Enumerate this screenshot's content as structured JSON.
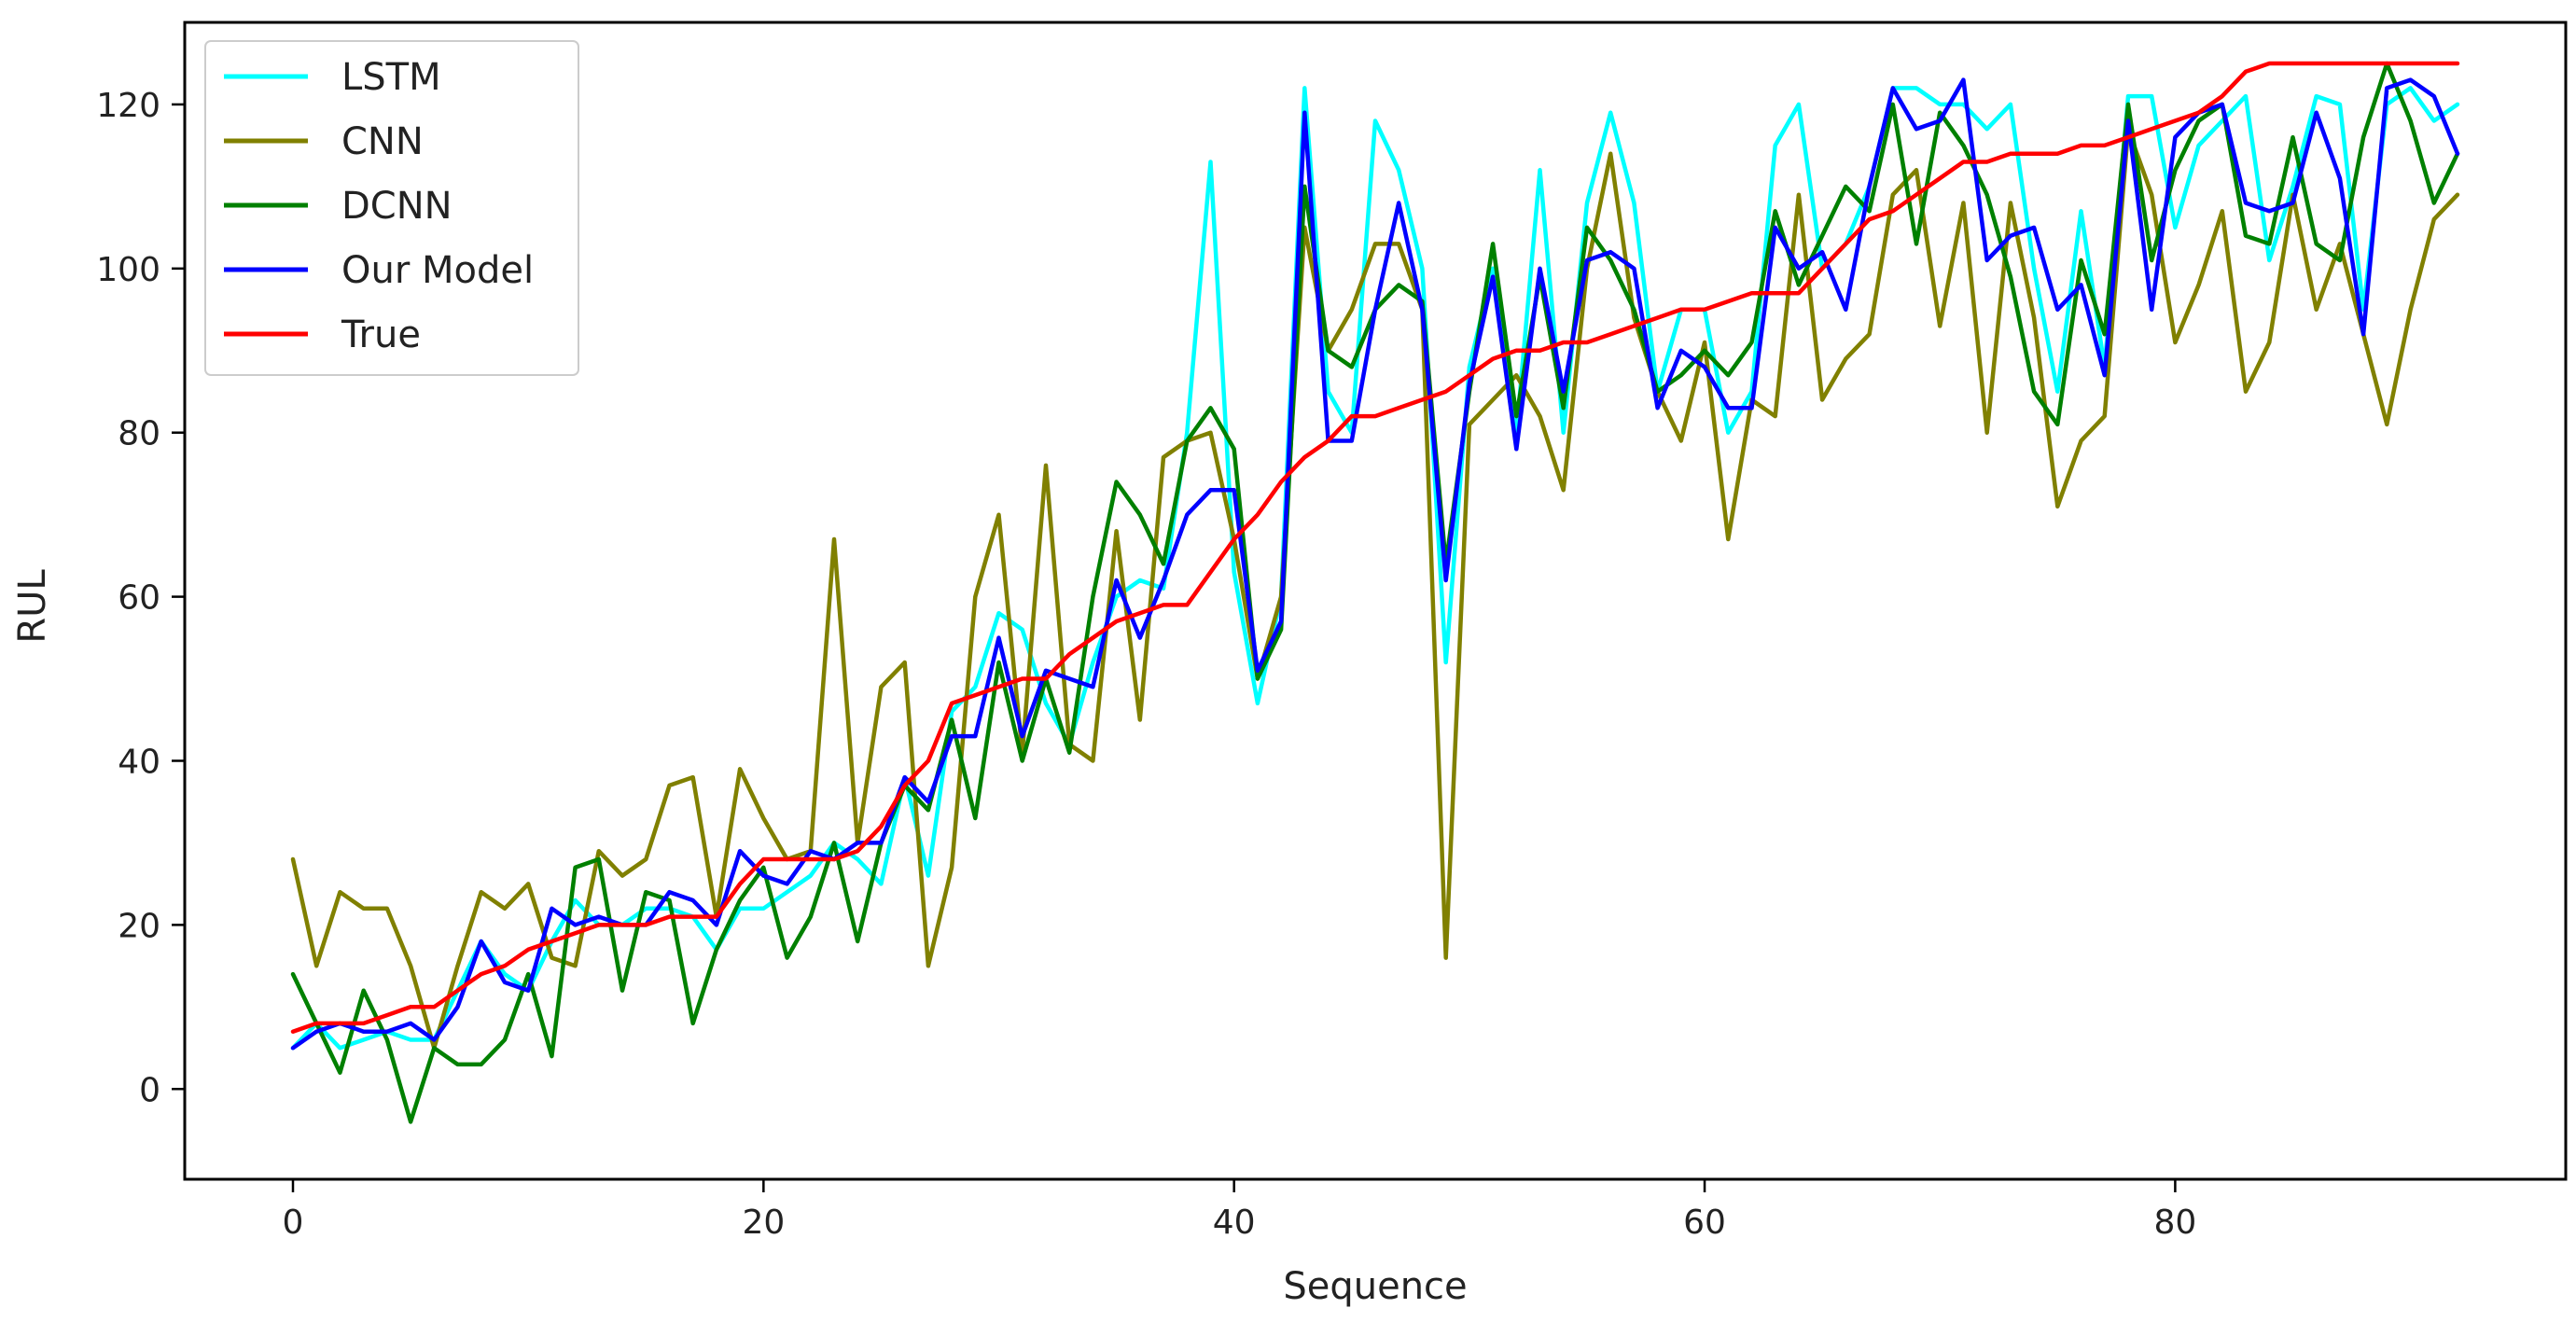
{
  "chart_data": {
    "type": "line",
    "title": "",
    "xlabel": "Sequence",
    "ylabel": "RUL",
    "xlim": [
      -4.6,
      96.6
    ],
    "ylim": [
      -11,
      130
    ],
    "xticks": [
      0,
      20,
      40,
      60,
      80
    ],
    "yticks": [
      0,
      20,
      40,
      60,
      80,
      100,
      120
    ],
    "grid": false,
    "legend_position": "top-left",
    "series": [
      {
        "name": "LSTM",
        "color": "#00ffff",
        "values": [
          5,
          8,
          5,
          6,
          7,
          6,
          6,
          12,
          18,
          14,
          12,
          18,
          23,
          20,
          20,
          22,
          22,
          21,
          17,
          22,
          22,
          24,
          26,
          30,
          28,
          25,
          38,
          26,
          46,
          49,
          58,
          56,
          47,
          42,
          52,
          60,
          62,
          61,
          80,
          113,
          63,
          47,
          60,
          122,
          85,
          80,
          118,
          112,
          100,
          52,
          88,
          100,
          80,
          112,
          80,
          108,
          119,
          108,
          85,
          95,
          95,
          80,
          85,
          115,
          120,
          100,
          103,
          110,
          122,
          122,
          120,
          120,
          117,
          120,
          100,
          85,
          107,
          88,
          121,
          121,
          105,
          115,
          118,
          121,
          101,
          110,
          121,
          120,
          95,
          120,
          122,
          118,
          120
        ]
      },
      {
        "name": "CNN",
        "color": "#808000",
        "values": [
          28,
          15,
          24,
          22,
          22,
          15,
          5,
          15,
          24,
          22,
          25,
          16,
          15,
          29,
          26,
          28,
          37,
          38,
          21,
          39,
          33,
          28,
          29,
          67,
          30,
          49,
          52,
          15,
          27,
          60,
          70,
          41,
          76,
          42,
          40,
          68,
          45,
          77,
          79,
          80,
          67,
          50,
          60,
          105,
          90,
          95,
          103,
          103,
          95,
          16,
          81,
          84,
          87,
          82,
          73,
          100,
          114,
          94,
          85,
          79,
          91,
          67,
          84,
          82,
          109,
          84,
          89,
          92,
          109,
          112,
          93,
          108,
          80,
          108,
          94,
          71,
          79,
          82,
          117,
          109,
          91,
          98,
          107,
          85,
          91,
          109,
          95,
          103,
          92,
          81,
          95,
          106,
          109
        ]
      },
      {
        "name": "DCNN",
        "color": "#008000",
        "values": [
          14,
          8,
          2,
          12,
          6,
          -4,
          5,
          3,
          3,
          6,
          14,
          4,
          27,
          28,
          12,
          24,
          23,
          8,
          17,
          23,
          27,
          16,
          21,
          30,
          18,
          30,
          37,
          34,
          45,
          33,
          52,
          40,
          50,
          41,
          60,
          74,
          70,
          64,
          79,
          83,
          78,
          50,
          56,
          110,
          90,
          88,
          95,
          98,
          96,
          64,
          85,
          103,
          82,
          99,
          83,
          105,
          101,
          95,
          85,
          87,
          90,
          87,
          91,
          107,
          98,
          104,
          110,
          107,
          120,
          103,
          119,
          115,
          109,
          99,
          85,
          81,
          101,
          92,
          120,
          101,
          112,
          118,
          120,
          104,
          103,
          116,
          103,
          101,
          116,
          125,
          118,
          108,
          114
        ]
      },
      {
        "name": "Our Model",
        "color": "#0000ff",
        "values": [
          5,
          7,
          8,
          7,
          7,
          8,
          6,
          10,
          18,
          13,
          12,
          22,
          20,
          21,
          20,
          20,
          24,
          23,
          20,
          29,
          26,
          25,
          29,
          28,
          30,
          30,
          38,
          35,
          43,
          43,
          55,
          43,
          51,
          50,
          49,
          62,
          55,
          62,
          70,
          73,
          73,
          51,
          57,
          119,
          79,
          79,
          95,
          108,
          95,
          62,
          86,
          99,
          78,
          100,
          85,
          101,
          102,
          100,
          83,
          90,
          88,
          83,
          83,
          105,
          100,
          102,
          95,
          110,
          122,
          117,
          118,
          123,
          101,
          104,
          105,
          95,
          98,
          87,
          118,
          95,
          116,
          119,
          120,
          108,
          107,
          108,
          119,
          111,
          92,
          122,
          123,
          121,
          114
        ]
      },
      {
        "name": "True",
        "color": "#ff0000",
        "values": [
          7,
          8,
          8,
          8,
          9,
          10,
          10,
          12,
          14,
          15,
          17,
          18,
          19,
          20,
          20,
          20,
          21,
          21,
          21,
          25,
          28,
          28,
          28,
          28,
          29,
          32,
          37,
          40,
          47,
          48,
          49,
          50,
          50,
          53,
          55,
          57,
          58,
          59,
          59,
          63,
          67,
          70,
          74,
          77,
          79,
          82,
          82,
          83,
          84,
          85,
          87,
          89,
          90,
          90,
          91,
          91,
          92,
          93,
          94,
          95,
          95,
          96,
          97,
          97,
          97,
          100,
          103,
          106,
          107,
          109,
          111,
          113,
          113,
          114,
          114,
          114,
          115,
          115,
          116,
          117,
          118,
          119,
          121,
          124,
          125,
          125,
          125,
          125,
          125,
          125,
          125,
          125,
          125
        ]
      }
    ]
  }
}
